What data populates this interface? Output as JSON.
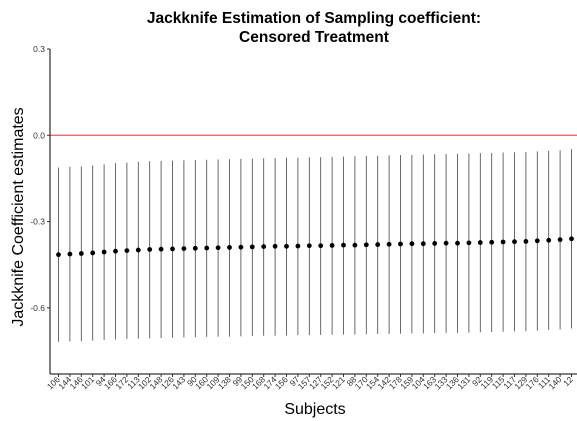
{
  "chart_data": {
    "type": "errorbar",
    "title": "Jackknife Estimation of Sampling coefficient:",
    "subtitle": "Censored Treatment",
    "xlabel": "Subjects",
    "ylabel": "Jackknife Coefficient estimates",
    "ylim": [
      -0.83,
      0.3
    ],
    "yticks": [
      0.3,
      0.0,
      -0.3,
      -0.6
    ],
    "ytick_labels": [
      "0.3",
      "0.0",
      "-0.3",
      "-0.6"
    ],
    "reference_line": {
      "y": 0.0,
      "color": "#e05c5c"
    },
    "grid": false,
    "categories": [
      "106",
      "144",
      "146",
      "101",
      "94",
      "166",
      "172",
      "113",
      "102",
      "148",
      "126",
      "143",
      "90",
      "160",
      "109",
      "138",
      "99",
      "150",
      "168",
      "174",
      "156",
      "97",
      "157",
      "127",
      "152",
      "121",
      "88",
      "170",
      "154",
      "142",
      "178",
      "159",
      "104",
      "163",
      "133",
      "136",
      "131",
      "92",
      "119",
      "115",
      "117",
      "129",
      "176",
      "111",
      "140",
      "12"
    ],
    "values": [
      -0.415,
      -0.413,
      -0.411,
      -0.409,
      -0.406,
      -0.403,
      -0.401,
      -0.399,
      -0.397,
      -0.396,
      -0.395,
      -0.394,
      -0.393,
      -0.392,
      -0.391,
      -0.39,
      -0.389,
      -0.388,
      -0.387,
      -0.386,
      -0.386,
      -0.385,
      -0.384,
      -0.384,
      -0.383,
      -0.382,
      -0.382,
      -0.381,
      -0.38,
      -0.379,
      -0.378,
      -0.377,
      -0.377,
      -0.376,
      -0.375,
      -0.375,
      -0.374,
      -0.373,
      -0.372,
      -0.371,
      -0.37,
      -0.369,
      -0.367,
      -0.365,
      -0.363,
      -0.36
    ],
    "lower": [
      -0.718,
      -0.717,
      -0.716,
      -0.714,
      -0.712,
      -0.71,
      -0.708,
      -0.707,
      -0.706,
      -0.705,
      -0.704,
      -0.703,
      -0.702,
      -0.701,
      -0.7,
      -0.7,
      -0.699,
      -0.698,
      -0.697,
      -0.697,
      -0.696,
      -0.695,
      -0.695,
      -0.694,
      -0.694,
      -0.693,
      -0.693,
      -0.692,
      -0.691,
      -0.691,
      -0.69,
      -0.689,
      -0.689,
      -0.688,
      -0.687,
      -0.687,
      -0.686,
      -0.685,
      -0.684,
      -0.683,
      -0.682,
      -0.681,
      -0.679,
      -0.677,
      -0.675,
      -0.672
    ],
    "upper": [
      -0.112,
      -0.11,
      -0.108,
      -0.105,
      -0.101,
      -0.097,
      -0.095,
      -0.092,
      -0.09,
      -0.089,
      -0.088,
      -0.087,
      -0.086,
      -0.085,
      -0.084,
      -0.083,
      -0.082,
      -0.081,
      -0.08,
      -0.079,
      -0.078,
      -0.078,
      -0.077,
      -0.076,
      -0.075,
      -0.074,
      -0.073,
      -0.072,
      -0.071,
      -0.07,
      -0.069,
      -0.068,
      -0.067,
      -0.066,
      -0.065,
      -0.064,
      -0.063,
      -0.062,
      -0.061,
      -0.06,
      -0.059,
      -0.058,
      -0.056,
      -0.054,
      -0.052,
      -0.048
    ],
    "colors": {
      "point": "#000000",
      "errorbar": "#444444",
      "reference": "#e05c5c",
      "axis": "#000000"
    }
  }
}
